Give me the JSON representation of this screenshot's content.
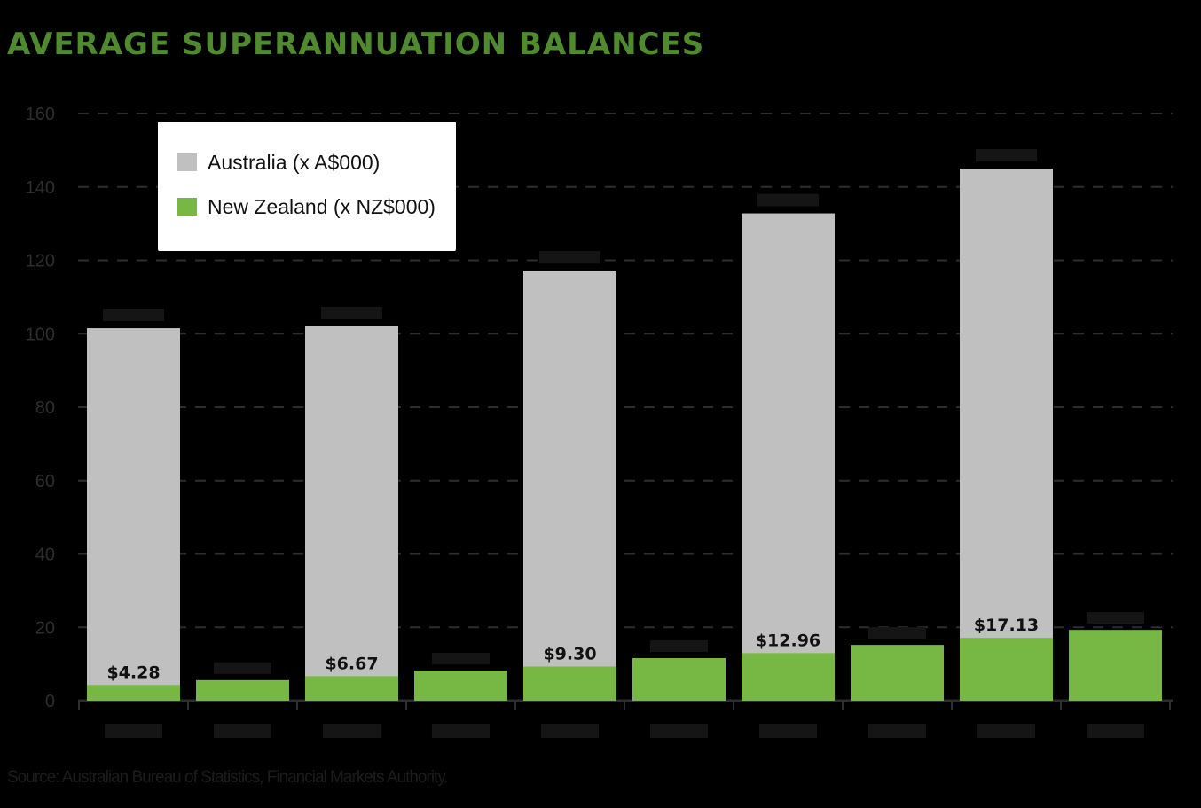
{
  "title": "AVERAGE SUPERANNUATION BALANCES",
  "source": "Source: Australian Bureau of Statistics, Financial Markets Authority.",
  "colors": {
    "background": "#000000",
    "australia": "#c0c0c0",
    "new_zealand": "#77b844",
    "title": "#4f8a2f",
    "gridline": "#2e2e2e",
    "axis": "#2e2e2e"
  },
  "chart_data": {
    "type": "bar",
    "title": "AVERAGE SUPERANNUATION BALANCES",
    "xlabel": "",
    "ylabel": "",
    "ylim": [
      0,
      160
    ],
    "yticks": [
      0,
      20,
      40,
      60,
      80,
      100,
      120,
      140,
      160
    ],
    "grid": true,
    "legend_position": "top-left",
    "bars": [
      {
        "series": "New Zealand (x NZ$000)",
        "value": 4.28,
        "label": "$4.28"
      },
      {
        "series": "New Zealand (x NZ$000)",
        "value": 5.6,
        "label": ""
      },
      {
        "series": "New Zealand (x NZ$000)",
        "value": 6.67,
        "label": "$6.67"
      },
      {
        "series": "New Zealand (x NZ$000)",
        "value": 8.2,
        "label": ""
      },
      {
        "series": "New Zealand (x NZ$000)",
        "value": 9.3,
        "label": "$9.30"
      },
      {
        "series": "New Zealand (x NZ$000)",
        "value": 11.6,
        "label": ""
      },
      {
        "series": "New Zealand (x NZ$000)",
        "value": 12.96,
        "label": "$12.96"
      },
      {
        "series": "New Zealand (x NZ$000)",
        "value": 15.2,
        "label": ""
      },
      {
        "series": "New Zealand (x NZ$000)",
        "value": 17.13,
        "label": "$17.13"
      },
      {
        "series": "New Zealand (x NZ$000)",
        "value": 19.3,
        "label": ""
      }
    ],
    "overlay_bars": [
      {
        "series": "Australia (x A$000)",
        "slot": 0,
        "value": 101.5,
        "label": ""
      },
      {
        "series": "Australia (x A$000)",
        "slot": 2,
        "value": 102.0,
        "label": ""
      },
      {
        "series": "Australia (x A$000)",
        "slot": 4,
        "value": 117.2,
        "label": ""
      },
      {
        "series": "Australia (x A$000)",
        "slot": 6,
        "value": 132.8,
        "label": ""
      },
      {
        "series": "Australia (x A$000)",
        "slot": 8,
        "value": 145.0,
        "label": ""
      }
    ],
    "series": [
      {
        "name": "Australia (x A$000)"
      },
      {
        "name": "New Zealand (x NZ$000)"
      }
    ]
  }
}
